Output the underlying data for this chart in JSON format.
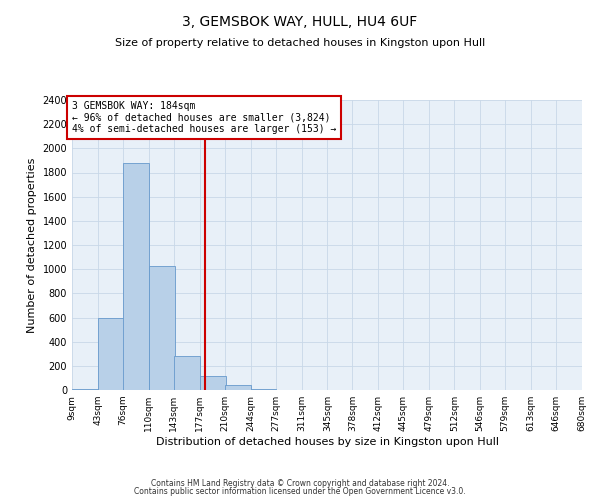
{
  "title": "3, GEMSBOK WAY, HULL, HU4 6UF",
  "subtitle": "Size of property relative to detached houses in Kingston upon Hull",
  "xlabel": "Distribution of detached houses by size in Kingston upon Hull",
  "ylabel": "Number of detached properties",
  "footer_line1": "Contains HM Land Registry data © Crown copyright and database right 2024.",
  "footer_line2": "Contains public sector information licensed under the Open Government Licence v3.0.",
  "bins": [
    9,
    43,
    76,
    110,
    143,
    177,
    210,
    244,
    277,
    311,
    345,
    378,
    412,
    445,
    479,
    512,
    546,
    579,
    613,
    646,
    680
  ],
  "bar_values": [
    10,
    600,
    1880,
    1030,
    280,
    120,
    40,
    10,
    0,
    0,
    0,
    0,
    0,
    0,
    0,
    0,
    0,
    0,
    0,
    0
  ],
  "bar_color": "#b8d0e8",
  "bar_edge_color": "#6699cc",
  "property_size": 184,
  "vline_color": "#cc0000",
  "annotation_text": "3 GEMSBOK WAY: 184sqm\n← 96% of detached houses are smaller (3,824)\n4% of semi-detached houses are larger (153) →",
  "annotation_box_color": "#ffffff",
  "annotation_box_edge_color": "#cc0000",
  "ylim": [
    0,
    2400
  ],
  "yticks": [
    0,
    200,
    400,
    600,
    800,
    1000,
    1200,
    1400,
    1600,
    1800,
    2000,
    2200,
    2400
  ],
  "grid_color": "#c8d8e8",
  "bg_color": "#e8f0f8",
  "fig_bg_color": "#ffffff",
  "tick_labels": [
    "9sqm",
    "43sqm",
    "76sqm",
    "110sqm",
    "143sqm",
    "177sqm",
    "210sqm",
    "244sqm",
    "277sqm",
    "311sqm",
    "345sqm",
    "378sqm",
    "412sqm",
    "445sqm",
    "479sqm",
    "512sqm",
    "546sqm",
    "579sqm",
    "613sqm",
    "646sqm",
    "680sqm"
  ],
  "title_fontsize": 10,
  "subtitle_fontsize": 8,
  "ylabel_fontsize": 8,
  "xlabel_fontsize": 8,
  "tick_fontsize": 6.5,
  "ytick_fontsize": 7,
  "annotation_fontsize": 7,
  "footer_fontsize": 5.5
}
